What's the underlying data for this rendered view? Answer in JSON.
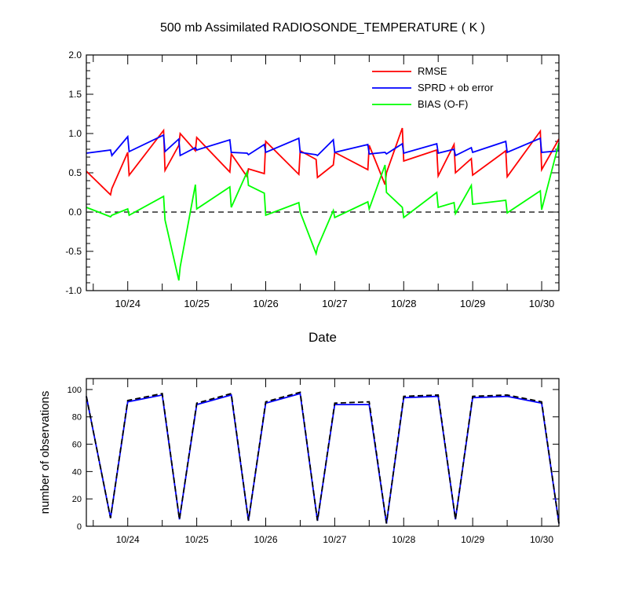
{
  "chart_data": [
    {
      "type": "line",
      "title": "500 mb Assimilated RADIOSONDE_TEMPERATURE ( K )",
      "xlabel": "Date",
      "ylabel": "",
      "ylim": [
        -1.0,
        2.0
      ],
      "yticks": [
        "-1.0",
        "-0.5",
        "0.0",
        "0.5",
        "1.0",
        "1.5",
        "2.0"
      ],
      "xlim": [
        23.4,
        30.25
      ],
      "xticks": [
        {
          "x": 24,
          "label": "10/24"
        },
        {
          "x": 25,
          "label": "10/25"
        },
        {
          "x": 26,
          "label": "10/26"
        },
        {
          "x": 27,
          "label": "10/27"
        },
        {
          "x": 28,
          "label": "10/28"
        },
        {
          "x": 29,
          "label": "10/29"
        },
        {
          "x": 30,
          "label": "10/30"
        }
      ],
      "reference_line": 0.0,
      "legend_position": "top-right",
      "series": [
        {
          "name": "RMSE",
          "color": "#ff0000",
          "x": [
            23.4,
            23.75,
            23.77,
            24.0,
            24.02,
            24.52,
            24.54,
            24.74,
            24.76,
            24.98,
            25.0,
            25.48,
            25.5,
            25.73,
            25.75,
            25.98,
            26.0,
            26.48,
            26.5,
            26.73,
            26.75,
            26.98,
            27.0,
            27.48,
            27.5,
            27.73,
            27.75,
            27.98,
            28.0,
            28.48,
            28.5,
            28.73,
            28.75,
            28.98,
            29.0,
            29.48,
            29.5,
            29.98,
            30.0,
            30.25
          ],
          "y": [
            0.52,
            0.22,
            0.3,
            0.76,
            0.47,
            1.04,
            0.53,
            0.85,
            1.0,
            0.78,
            0.95,
            0.51,
            0.74,
            0.45,
            0.55,
            0.49,
            0.9,
            0.48,
            0.78,
            0.67,
            0.44,
            0.6,
            0.76,
            0.54,
            0.85,
            0.35,
            0.5,
            1.07,
            0.65,
            0.79,
            0.46,
            0.86,
            0.5,
            0.68,
            0.47,
            0.78,
            0.45,
            1.03,
            0.54,
            0.93
          ]
        },
        {
          "name": "SPRD + ob error",
          "color": "#0000ff",
          "x": [
            23.4,
            23.75,
            23.77,
            24.0,
            24.02,
            24.52,
            24.54,
            24.74,
            24.76,
            24.98,
            25.0,
            25.48,
            25.5,
            25.73,
            25.75,
            25.98,
            26.0,
            26.48,
            26.5,
            26.73,
            26.75,
            26.98,
            27.0,
            27.48,
            27.5,
            27.73,
            27.75,
            27.98,
            28.0,
            28.48,
            28.5,
            28.73,
            28.75,
            28.98,
            29.0,
            29.48,
            29.5,
            29.98,
            30.0,
            30.25
          ],
          "y": [
            0.75,
            0.79,
            0.72,
            0.96,
            0.77,
            0.98,
            0.77,
            0.93,
            0.72,
            0.82,
            0.79,
            0.92,
            0.76,
            0.75,
            0.73,
            0.86,
            0.76,
            0.94,
            0.76,
            0.73,
            0.72,
            0.92,
            0.76,
            0.86,
            0.74,
            0.76,
            0.74,
            0.87,
            0.75,
            0.87,
            0.75,
            0.8,
            0.72,
            0.82,
            0.76,
            0.9,
            0.76,
            0.94,
            0.76,
            0.78
          ]
        },
        {
          "name": "BIAS (O-F)",
          "color": "#00ff00",
          "x": [
            23.4,
            23.75,
            23.77,
            24.0,
            24.02,
            24.52,
            24.54,
            24.74,
            24.76,
            24.98,
            25.0,
            25.48,
            25.5,
            25.73,
            25.75,
            25.98,
            26.0,
            26.48,
            26.5,
            26.73,
            26.75,
            26.98,
            27.0,
            27.48,
            27.5,
            27.73,
            27.75,
            27.98,
            28.0,
            28.48,
            28.5,
            28.73,
            28.75,
            28.98,
            29.0,
            29.48,
            29.5,
            29.98,
            30.0,
            30.25
          ],
          "y": [
            0.06,
            -0.06,
            -0.04,
            0.04,
            -0.04,
            0.2,
            -0.1,
            -0.87,
            -0.7,
            0.35,
            0.04,
            0.32,
            0.06,
            0.51,
            0.34,
            0.24,
            -0.04,
            0.12,
            0.0,
            -0.53,
            -0.45,
            0.02,
            -0.07,
            0.13,
            0.04,
            0.6,
            0.25,
            0.06,
            -0.07,
            0.25,
            0.06,
            0.12,
            -0.02,
            0.34,
            0.1,
            0.15,
            -0.01,
            0.27,
            0.03,
            0.88
          ]
        }
      ]
    },
    {
      "type": "line",
      "title": "",
      "xlabel": "",
      "ylabel": "number of observations",
      "ylim": [
        0,
        108
      ],
      "yticks": [
        "0",
        "20",
        "40",
        "60",
        "80",
        "100"
      ],
      "xlim": [
        23.4,
        30.25
      ],
      "xticks": [
        {
          "x": 24,
          "label": "10/24"
        },
        {
          "x": 25,
          "label": "10/25"
        },
        {
          "x": 26,
          "label": "10/26"
        },
        {
          "x": 27,
          "label": "10/27"
        },
        {
          "x": 28,
          "label": "10/28"
        },
        {
          "x": 29,
          "label": "10/29"
        },
        {
          "x": 30,
          "label": "10/30"
        }
      ],
      "series": [
        {
          "color": "#0000ff",
          "dash": false,
          "x": [
            23.4,
            23.75,
            24.0,
            24.5,
            24.75,
            25.0,
            25.5,
            25.75,
            26.0,
            26.5,
            26.75,
            27.0,
            27.5,
            27.75,
            28.0,
            28.5,
            28.75,
            29.0,
            29.5,
            30.0,
            30.25
          ],
          "y": [
            95,
            6,
            91,
            96,
            5,
            89,
            96,
            4,
            90,
            97,
            4,
            89,
            89,
            2,
            94,
            95,
            5,
            94,
            95,
            90,
            2
          ]
        },
        {
          "color": "#000000",
          "dash": true,
          "x": [
            23.4,
            23.75,
            24.0,
            24.5,
            24.75,
            25.0,
            25.5,
            25.75,
            26.0,
            26.5,
            26.75,
            27.0,
            27.5,
            27.75,
            28.0,
            28.5,
            28.75,
            29.0,
            29.5,
            30.0,
            30.25
          ],
          "y": [
            95,
            6,
            92,
            97,
            5,
            90,
            97,
            4,
            91,
            98,
            4,
            90,
            91,
            2,
            95,
            96,
            5,
            95,
            96,
            91,
            2
          ]
        }
      ]
    }
  ]
}
